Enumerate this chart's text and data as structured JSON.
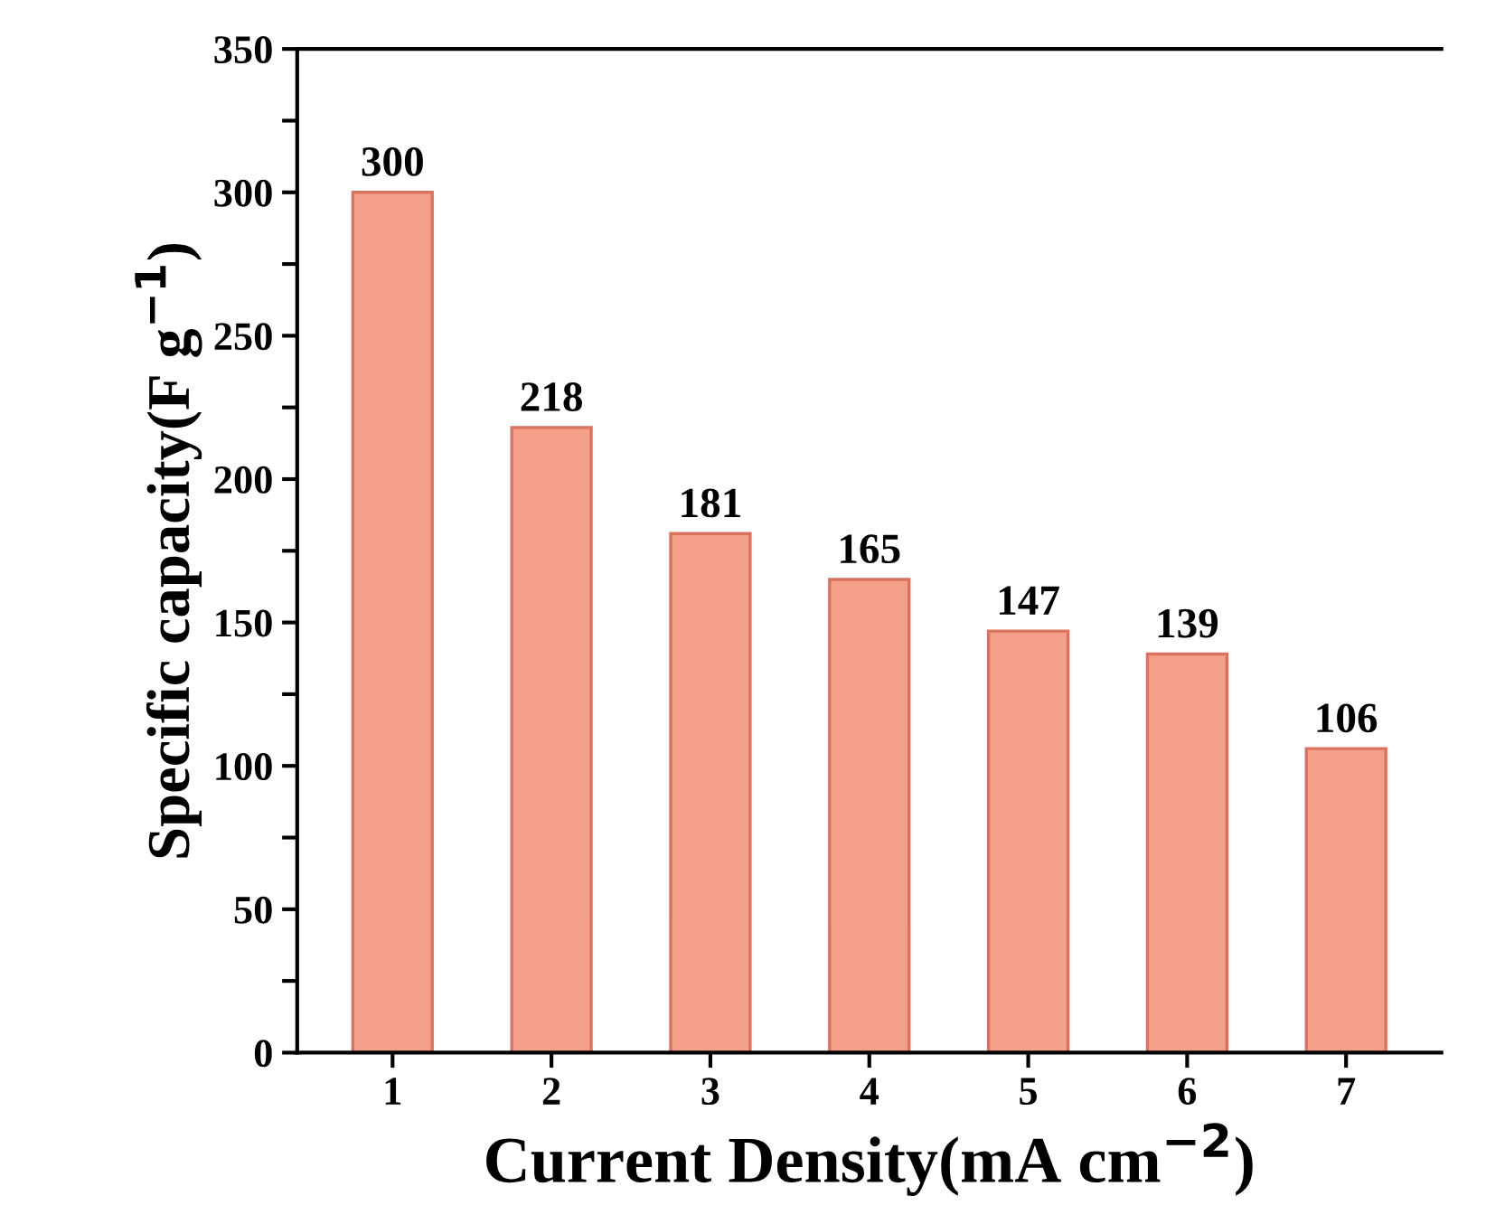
{
  "chart_data": {
    "type": "bar",
    "xlabel": "Current Density(mA cm$^{−2}$)",
    "ylabel": "Specific capacity(F g$^{−1}$)",
    "categories": [
      "1",
      "2",
      "3",
      "4",
      "5",
      "6",
      "7"
    ],
    "values": [
      300,
      218,
      181,
      165,
      147,
      139,
      106
    ],
    "color": "#f5a08b",
    "ylim": [
      0,
      350
    ],
    "yticks": [
      0,
      {
        "value": 25,
        "label": null
      },
      50,
      {
        "value": 75,
        "label": null
      },
      100,
      {
        "value": 125,
        "label": null
      },
      150,
      {
        "value": 175,
        "label": null
      },
      200,
      {
        "value": 225,
        "label": null
      },
      250,
      {
        "value": 275,
        "label": null
      },
      300,
      {
        "value": 325,
        "label": null
      },
      350
    ],
    "data_labels": true,
    "grid": false
  }
}
